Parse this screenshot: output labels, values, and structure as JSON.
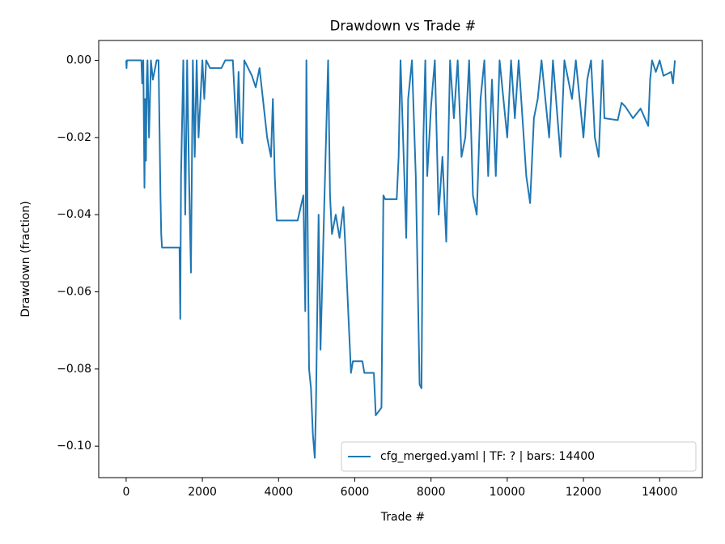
{
  "chart_data": {
    "type": "line",
    "title": "Drawdown vs Trade #",
    "x_label": "Trade #",
    "y_label": "Drawdown (fraction)",
    "xlim": [
      -720,
      15120
    ],
    "ylim": [
      -0.10815,
      0.00515
    ],
    "xticks": [
      0,
      2000,
      4000,
      6000,
      8000,
      10000,
      12000,
      14000
    ],
    "yticks": [
      {
        "value": 0,
        "label": "0.00"
      },
      {
        "value": -0.02,
        "label": "−0.02"
      },
      {
        "value": -0.04,
        "label": "−0.04"
      },
      {
        "value": -0.06,
        "label": "−0.06"
      },
      {
        "value": -0.08,
        "label": "−0.08"
      },
      {
        "value": -0.1,
        "label": "−0.10"
      }
    ],
    "legend": "lower right",
    "x": [
      0,
      10,
      20,
      400,
      420,
      450,
      480,
      500,
      520,
      540,
      560,
      600,
      650,
      700,
      800,
      850,
      900,
      920,
      940,
      1400,
      1420,
      1440,
      1500,
      1550,
      1600,
      1650,
      1700,
      1750,
      1800,
      1850,
      1900,
      2000,
      2050,
      2100,
      2200,
      2500,
      2600,
      2800,
      2850,
      2900,
      2950,
      3000,
      3050,
      3100,
      3200,
      3300,
      3400,
      3500,
      3700,
      3800,
      3850,
      3900,
      3950,
      4500,
      4650,
      4700,
      4730,
      4760,
      4800,
      4850,
      4900,
      4950,
      4980,
      5050,
      5100,
      5200,
      5300,
      5350,
      5400,
      5500,
      5600,
      5700,
      5750,
      5850,
      5900,
      5950,
      6200,
      6250,
      6500,
      6550,
      6700,
      6750,
      6800,
      7100,
      7150,
      7200,
      7300,
      7350,
      7400,
      7500,
      7600,
      7700,
      7750,
      7800,
      7850,
      7900,
      8000,
      8100,
      8200,
      8300,
      8400,
      8500,
      8600,
      8700,
      8800,
      8900,
      9000,
      9100,
      9200,
      9300,
      9400,
      9500,
      9600,
      9700,
      9800,
      10000,
      10100,
      10200,
      10300,
      10500,
      10600,
      10700,
      10800,
      10900,
      11000,
      11100,
      11200,
      11400,
      11500,
      11700,
      11800,
      12000,
      12100,
      12200,
      12300,
      12400,
      12500,
      12550,
      12900,
      13000,
      13100,
      13300,
      13500,
      13700,
      13750,
      13800,
      13900,
      14000,
      14100,
      14300,
      14350,
      14400
    ],
    "series": [
      {
        "name": "cfg_merged.yaml | TF: ? | bars: 14400",
        "color": "#1f77b4",
        "values": [
          0,
          -0.002,
          0,
          0,
          -0.006,
          0,
          -0.033,
          -0.01,
          -0.026,
          -0.005,
          0,
          -0.02,
          0,
          -0.005,
          0,
          0,
          -0.035,
          -0.045,
          -0.0485,
          -0.0485,
          -0.067,
          -0.03,
          0,
          -0.04,
          0,
          -0.03,
          -0.055,
          0,
          -0.025,
          0,
          -0.02,
          0,
          -0.01,
          0,
          -0.002,
          -0.002,
          0,
          0,
          -0.01,
          -0.02,
          -0.003,
          -0.02,
          -0.0215,
          0,
          -0.002,
          -0.004,
          -0.007,
          -0.002,
          -0.02,
          -0.025,
          -0.01,
          -0.03,
          -0.0415,
          -0.0415,
          -0.035,
          -0.065,
          0,
          -0.04,
          -0.08,
          -0.085,
          -0.097,
          -0.103,
          -0.09,
          -0.04,
          -0.075,
          -0.037,
          0,
          -0.035,
          -0.045,
          -0.04,
          -0.046,
          -0.038,
          -0.048,
          -0.07,
          -0.081,
          -0.078,
          -0.078,
          -0.081,
          -0.081,
          -0.092,
          -0.09,
          -0.035,
          -0.036,
          -0.036,
          -0.025,
          0,
          -0.03,
          -0.046,
          -0.01,
          0,
          -0.03,
          -0.084,
          -0.085,
          -0.02,
          0,
          -0.03,
          -0.012,
          0,
          -0.04,
          -0.025,
          -0.047,
          0,
          -0.015,
          0,
          -0.025,
          -0.02,
          0,
          -0.035,
          -0.04,
          -0.01,
          0,
          -0.03,
          -0.005,
          -0.03,
          0,
          -0.02,
          0,
          -0.015,
          0,
          -0.03,
          -0.037,
          -0.015,
          -0.01,
          0,
          -0.01,
          -0.02,
          0,
          -0.025,
          0,
          -0.01,
          0,
          -0.02,
          -0.005,
          0,
          -0.02,
          -0.025,
          0,
          -0.015,
          -0.0155,
          -0.011,
          -0.012,
          -0.015,
          -0.0125,
          -0.017,
          -0.005,
          0,
          -0.003,
          0,
          -0.004,
          -0.003,
          -0.006,
          0
        ]
      }
    ]
  }
}
